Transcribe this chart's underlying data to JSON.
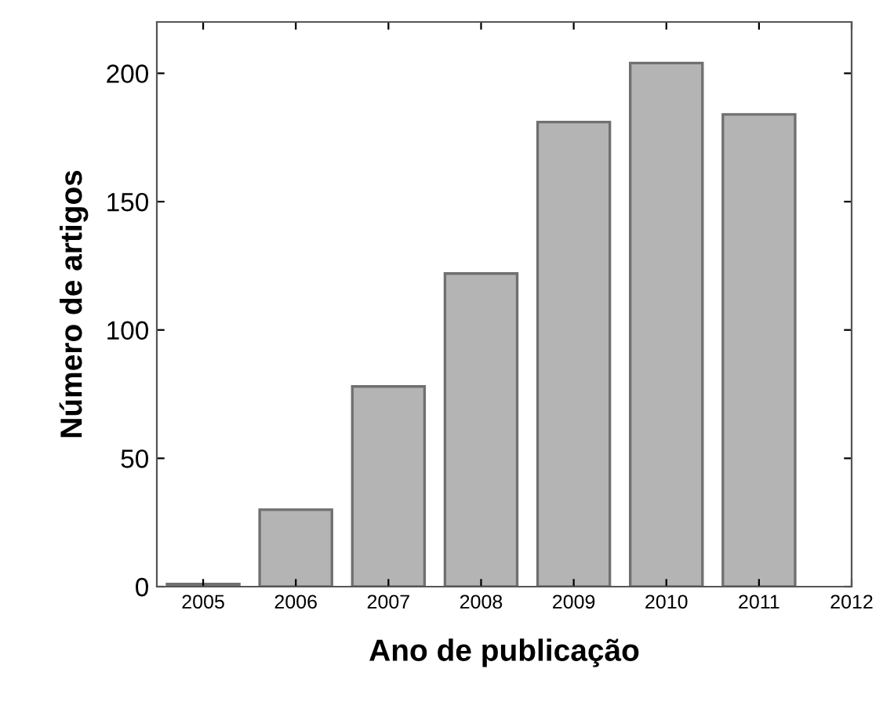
{
  "chart_data": {
    "type": "bar",
    "xlabel": "Ano de publicação",
    "ylabel": "Número de artigos",
    "x": [
      2005,
      2006,
      2007,
      2008,
      2009,
      2010,
      2011
    ],
    "values": [
      1,
      30,
      78,
      122,
      181,
      204,
      184
    ],
    "color": "#b4b4b4",
    "xlim": [
      2004.5,
      2012
    ],
    "xticks": [
      2005,
      2006,
      2007,
      2008,
      2009,
      2010,
      2011,
      2012
    ],
    "ylim": [
      0,
      220
    ],
    "yticks": [
      0,
      50,
      100,
      150,
      200
    ],
    "grid": false,
    "legend": false
  }
}
